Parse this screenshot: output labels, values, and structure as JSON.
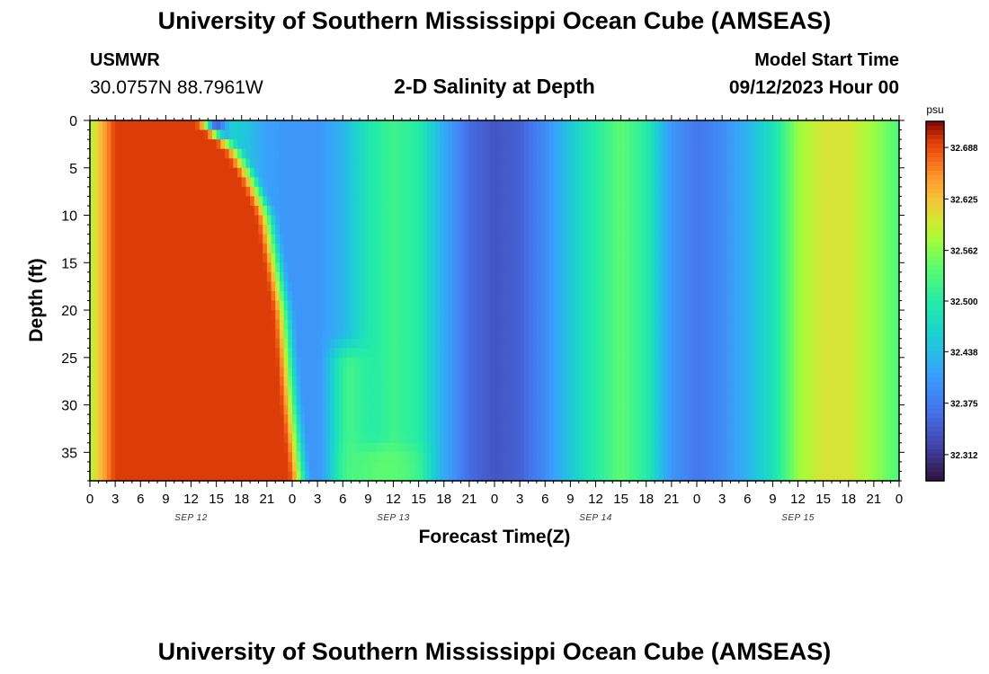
{
  "header": {
    "title": "University of Southern Mississippi Ocean Cube (AMSEAS)",
    "station": "USMWR",
    "coords": "30.0757N  88.7961W",
    "subtitle": "2-D Salinity at Depth",
    "run_label": "Model Start Time",
    "run_date": "09/12/2023 Hour 00"
  },
  "footer": {
    "title": "University of Southern Mississippi Ocean Cube (AMSEAS)"
  },
  "chart_data": {
    "type": "heatmap",
    "title": "2-D Salinity at Depth",
    "xlabel": "Forecast Time(Z)",
    "ylabel": "Depth (ft)",
    "x_range_hours": [
      0,
      96
    ],
    "x_tick_step_hours": 3,
    "x_tick_labels": [
      "0",
      "3",
      "6",
      "9",
      "12",
      "15",
      "18",
      "21",
      "0",
      "3",
      "6",
      "9",
      "12",
      "15",
      "18",
      "21",
      "0",
      "3",
      "6",
      "9",
      "12",
      "15",
      "18",
      "21",
      "0",
      "3",
      "6",
      "9",
      "12",
      "15",
      "18",
      "21",
      "0"
    ],
    "day_labels": [
      {
        "label": "SEP 12",
        "hour": 12
      },
      {
        "label": "SEP 13",
        "hour": 36
      },
      {
        "label": "SEP 14",
        "hour": 60
      },
      {
        "label": "SEP 15",
        "hour": 84
      }
    ],
    "y_range_ft": [
      0,
      38
    ],
    "y_ticks": [
      0,
      5,
      10,
      15,
      20,
      25,
      30,
      35
    ],
    "colorbar": {
      "unit": "psu",
      "min": 32.28,
      "max": 32.72,
      "tick_values": [
        32.688,
        32.625,
        32.562,
        32.5,
        32.438,
        32.375,
        32.312
      ],
      "tick_labels": [
        "32.688",
        "32.625",
        "32.562",
        "32.500",
        "32.438",
        "32.375",
        "32.312"
      ]
    },
    "surface_salinity_psu": [
      {
        "hour": 0,
        "value": 32.58
      },
      {
        "hour": 1,
        "value": 32.61
      },
      {
        "hour": 3,
        "value": 32.64
      },
      {
        "hour": 6,
        "value": 32.67
      },
      {
        "hour": 9,
        "value": 32.685
      },
      {
        "hour": 12,
        "value": 32.66
      },
      {
        "hour": 13,
        "value": 32.55
      },
      {
        "hour": 14,
        "value": 32.45
      },
      {
        "hour": 15,
        "value": 32.38
      },
      {
        "hour": 17,
        "value": 32.46
      },
      {
        "hour": 19,
        "value": 32.44
      },
      {
        "hour": 21,
        "value": 32.41
      },
      {
        "hour": 24,
        "value": 32.4
      },
      {
        "hour": 27,
        "value": 32.4
      },
      {
        "hour": 30,
        "value": 32.43
      },
      {
        "hour": 33,
        "value": 32.49
      },
      {
        "hour": 36,
        "value": 32.52
      },
      {
        "hour": 39,
        "value": 32.5
      },
      {
        "hour": 42,
        "value": 32.42
      },
      {
        "hour": 45,
        "value": 32.36
      },
      {
        "hour": 48,
        "value": 32.34
      },
      {
        "hour": 51,
        "value": 32.35
      },
      {
        "hour": 54,
        "value": 32.39
      },
      {
        "hour": 57,
        "value": 32.45
      },
      {
        "hour": 60,
        "value": 32.5
      },
      {
        "hour": 63,
        "value": 32.54
      },
      {
        "hour": 66,
        "value": 32.5
      },
      {
        "hour": 69,
        "value": 32.4
      },
      {
        "hour": 72,
        "value": 32.37
      },
      {
        "hour": 75,
        "value": 32.39
      },
      {
        "hour": 78,
        "value": 32.43
      },
      {
        "hour": 81,
        "value": 32.48
      },
      {
        "hour": 84,
        "value": 32.57
      },
      {
        "hour": 87,
        "value": 32.6
      },
      {
        "hour": 90,
        "value": 32.6
      },
      {
        "hour": 93,
        "value": 32.57
      },
      {
        "hour": 96,
        "value": 32.53
      }
    ],
    "high_salinity_boundary_hour_by_depth": [
      {
        "depth_ft": 0,
        "hour": 13
      },
      {
        "depth_ft": 3,
        "hour": 17
      },
      {
        "depth_ft": 6,
        "hour": 19
      },
      {
        "depth_ft": 10,
        "hour": 21
      },
      {
        "depth_ft": 15,
        "hour": 22
      },
      {
        "depth_ft": 20,
        "hour": 23
      },
      {
        "depth_ft": 30,
        "hour": 24
      },
      {
        "depth_ft": 38,
        "hour": 25
      }
    ],
    "features": [
      {
        "name": "fresher surface pocket",
        "hour_range": [
          14,
          16
        ],
        "depth_range_ft": [
          0,
          1
        ],
        "value": 32.34
      },
      {
        "name": "mid-depth tongue",
        "hour_range": [
          28,
          34
        ],
        "depth_range_ft": [
          24,
          38
        ],
        "value": 32.52
      },
      {
        "name": "near-bottom band",
        "hour_range": [
          30,
          40
        ],
        "depth_range_ft": [
          34,
          38
        ],
        "value": 32.54
      }
    ]
  }
}
